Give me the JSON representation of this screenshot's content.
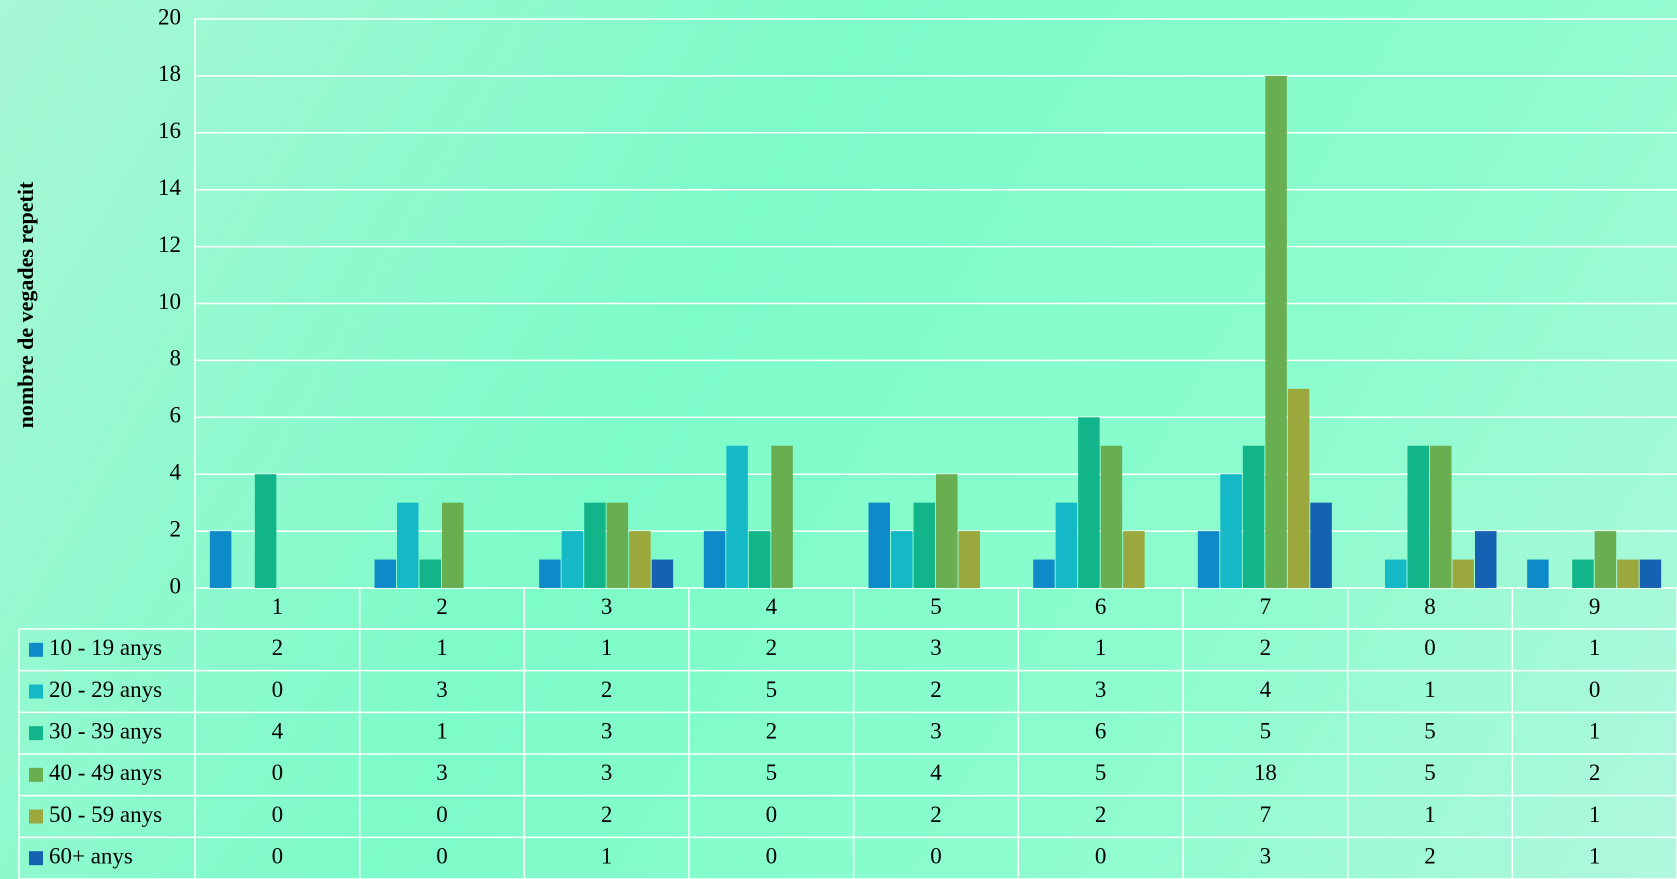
{
  "chart_data": {
    "type": "bar",
    "y_axis_label": "nombre de vegades repetit",
    "categories": [
      "1",
      "2",
      "3",
      "4",
      "5",
      "6",
      "7",
      "8",
      "9"
    ],
    "series": [
      {
        "name": "10 - 19 anys",
        "color": "#0f8ac8",
        "values": [
          2,
          1,
          1,
          2,
          3,
          1,
          2,
          0,
          1
        ]
      },
      {
        "name": "20 - 29 anys",
        "color": "#14b8c6",
        "values": [
          0,
          3,
          2,
          5,
          2,
          3,
          4,
          1,
          0
        ]
      },
      {
        "name": "30 - 39 anys",
        "color": "#12b48a",
        "values": [
          4,
          1,
          3,
          2,
          3,
          6,
          5,
          5,
          1
        ]
      },
      {
        "name": "40 - 49 anys",
        "color": "#6aae52",
        "values": [
          0,
          3,
          3,
          5,
          4,
          5,
          18,
          5,
          2
        ]
      },
      {
        "name": "50 - 59 anys",
        "color": "#9aa83e",
        "values": [
          0,
          0,
          2,
          0,
          2,
          2,
          7,
          1,
          1
        ]
      },
      {
        "name": "60+ anys",
        "color": "#1662b2",
        "values": [
          0,
          0,
          1,
          0,
          0,
          0,
          3,
          2,
          1
        ]
      }
    ],
    "ylim": [
      0,
      20
    ],
    "yticks": [
      0,
      2,
      4,
      6,
      8,
      10,
      12,
      14,
      16,
      18,
      20
    ],
    "grid": true
  }
}
